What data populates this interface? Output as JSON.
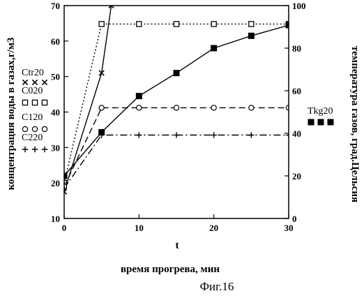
{
  "chart_data": {
    "type": "line",
    "xlabel": "t",
    "x_description": "время прогрева, мин",
    "ylabel_left": "концентрация воды в газах,г/м3",
    "ylabel_right": "температура газов, град.Цельсия",
    "xlim": [
      0,
      30
    ],
    "ylim_left": [
      10,
      70
    ],
    "ylim_right": [
      0,
      100
    ],
    "x_ticks": [
      0,
      10,
      20,
      30
    ],
    "y_left_ticks": [
      10,
      20,
      30,
      40,
      50,
      60,
      70
    ],
    "y_right_ticks": [
      0,
      20,
      40,
      60,
      80,
      100
    ],
    "grid": false,
    "series": [
      {
        "name": "Ctr20",
        "axis": "left",
        "marker": "x",
        "dash": "solid",
        "x": [
          0,
          5,
          6.3
        ],
        "y": [
          17.5,
          51,
          70
        ]
      },
      {
        "name": "C020",
        "axis": "left",
        "marker": "square-open",
        "dash": "dotted",
        "x": [
          0,
          5,
          10,
          15,
          20,
          25,
          30
        ],
        "y": [
          20,
          64.8,
          64.8,
          64.8,
          64.8,
          64.8,
          64.8
        ]
      },
      {
        "name": "C120",
        "axis": "left",
        "marker": "circle-open",
        "dash": "dashed",
        "x": [
          0,
          5,
          10,
          15,
          20,
          25,
          30
        ],
        "y": [
          19,
          41.2,
          41.2,
          41.2,
          41.2,
          41.2,
          41.2
        ]
      },
      {
        "name": "C220",
        "axis": "left",
        "marker": "plus",
        "dash": "dashdot",
        "x": [
          0,
          5,
          10,
          15,
          20,
          25,
          30
        ],
        "y": [
          18.5,
          33.5,
          33.5,
          33.5,
          33.5,
          33.5,
          33.5
        ]
      },
      {
        "name": "Tkg20",
        "axis": "right",
        "marker": "square-filled",
        "dash": "solid",
        "x": [
          0,
          5,
          10,
          15,
          20,
          25,
          30
        ],
        "y": [
          20,
          40.5,
          57.5,
          68.3,
          80,
          85.8,
          90.8
        ]
      }
    ]
  },
  "caption": "Фиг.16"
}
